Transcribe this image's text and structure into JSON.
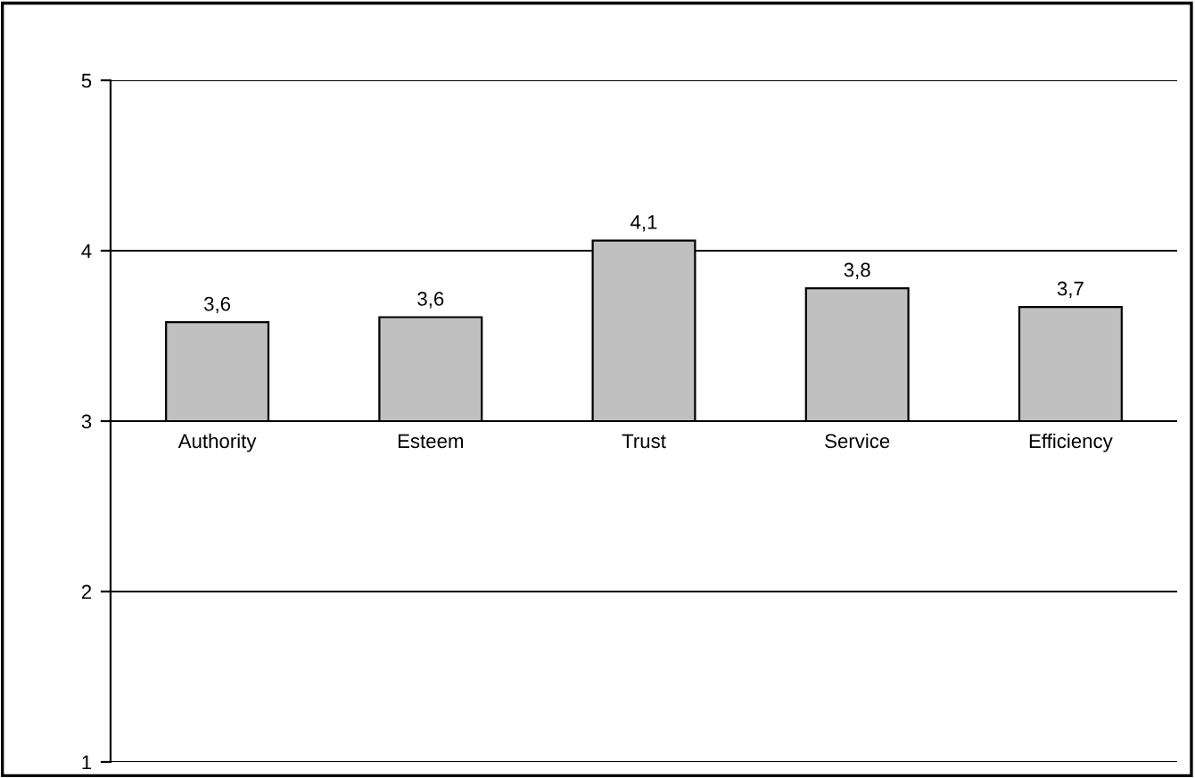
{
  "chart_data": {
    "type": "bar",
    "categories": [
      "Authority",
      "Esteem",
      "Trust",
      "Service",
      "Efficiency"
    ],
    "base": [
      3,
      3,
      3,
      3,
      3
    ],
    "values": [
      0.58,
      0.61,
      1.06,
      0.78,
      0.67
    ],
    "value_labels": [
      "3,6",
      "3,6",
      "4,1",
      "3,8",
      "3,7"
    ],
    "color": "#c0c0c0",
    "ylim": [
      1,
      5
    ],
    "yticks": [
      1,
      2,
      3,
      4,
      5
    ],
    "grid": "y"
  }
}
